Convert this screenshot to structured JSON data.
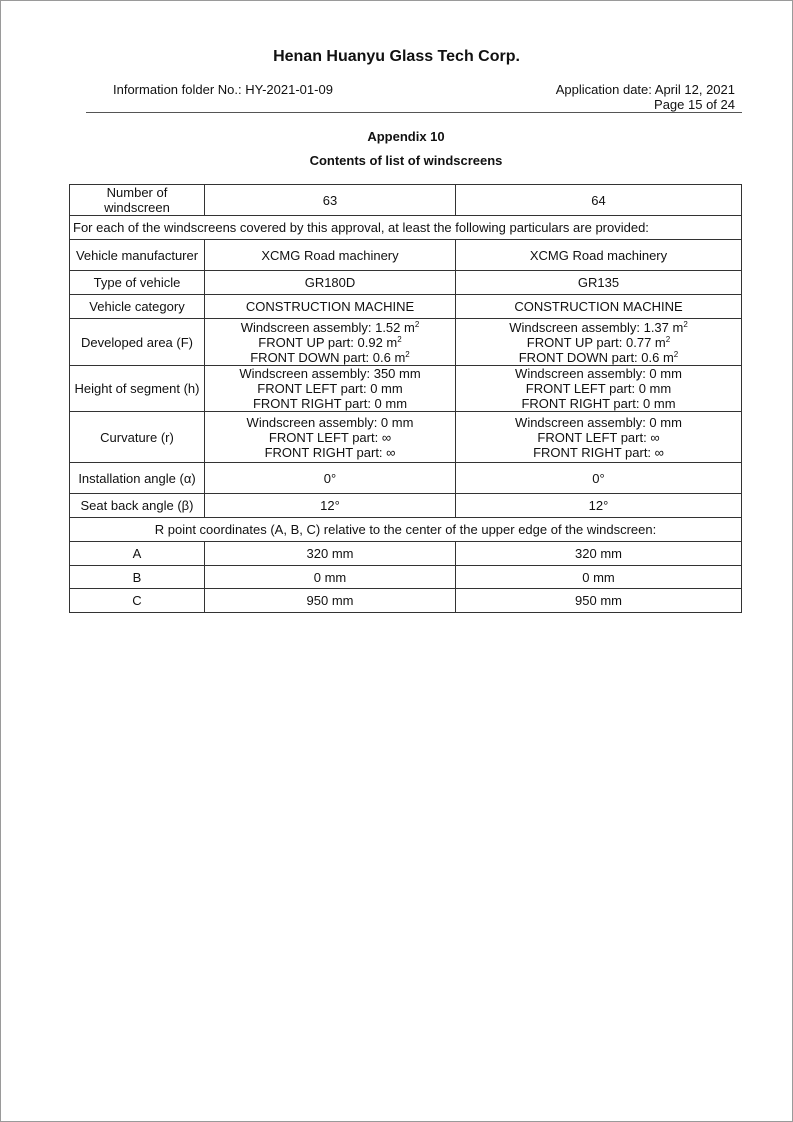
{
  "header": {
    "company": "Henan Huanyu Glass Tech Corp.",
    "folder_no": "Information folder No.: HY-2021-01-09",
    "application_date": "Application date: April 12, 2021",
    "page": "Page 15 of 24"
  },
  "appendix": "Appendix 10",
  "subtitle": "Contents of list of windscreens",
  "table": {
    "rows": [
      {
        "h": 31,
        "label": "Number of windscreen",
        "cols": [
          [
            {
              "t": "63"
            }
          ],
          [
            {
              "t": "64"
            }
          ]
        ]
      },
      {
        "h": 24,
        "span": "For each of the windscreens covered by this approval, at least the following particulars are provided:"
      },
      {
        "h": 31,
        "label": "Vehicle manufacturer",
        "cols": [
          [
            {
              "t": "XCMG Road machinery"
            }
          ],
          [
            {
              "t": "XCMG Road machinery"
            }
          ]
        ]
      },
      {
        "h": 24,
        "label": "Type of vehicle",
        "cols": [
          [
            {
              "t": "GR180D"
            }
          ],
          [
            {
              "t": "GR135"
            }
          ]
        ]
      },
      {
        "h": 24,
        "label": "Vehicle category",
        "cols": [
          [
            {
              "t": "CONSTRUCTION MACHINE"
            }
          ],
          [
            {
              "t": "CONSTRUCTION MACHINE"
            }
          ]
        ]
      },
      {
        "h": 47,
        "label": "Developed area (F)",
        "cols": [
          [
            {
              "t": "Windscreen assembly: 1.52 m",
              "sup": "2"
            },
            {
              "t": "FRONT UP part: 0.92 m",
              "sup": "2"
            },
            {
              "t": "FRONT DOWN part: 0.6 m",
              "sup": "2"
            }
          ],
          [
            {
              "t": "Windscreen assembly: 1.37 m",
              "sup": "2"
            },
            {
              "t": "FRONT UP part: 0.77 m",
              "sup": "2"
            },
            {
              "t": "FRONT DOWN part: 0.6 m",
              "sup": "2"
            }
          ]
        ]
      },
      {
        "h": 46,
        "label": "Height of segment (h)",
        "cols": [
          [
            {
              "t": "Windscreen assembly: 350 mm"
            },
            {
              "t": "FRONT LEFT part: 0 mm"
            },
            {
              "t": "FRONT RIGHT part: 0 mm"
            }
          ],
          [
            {
              "t": "Windscreen assembly: 0 mm"
            },
            {
              "t": "FRONT LEFT part: 0 mm"
            },
            {
              "t": "FRONT RIGHT part: 0 mm"
            }
          ]
        ]
      },
      {
        "h": 51,
        "label": "Curvature (r)",
        "cols": [
          [
            {
              "t": "Windscreen assembly: 0 mm"
            },
            {
              "t": "FRONT LEFT part: ∞"
            },
            {
              "t": "FRONT RIGHT part: ∞"
            }
          ],
          [
            {
              "t": "Windscreen assembly: 0 mm"
            },
            {
              "t": "FRONT LEFT part: ∞"
            },
            {
              "t": "FRONT RIGHT part: ∞"
            }
          ]
        ]
      },
      {
        "h": 31,
        "label": "Installation angle (α)",
        "cols": [
          [
            {
              "t": "0°"
            }
          ],
          [
            {
              "t": "0°"
            }
          ]
        ]
      },
      {
        "h": 24,
        "label": "Seat back angle (β)",
        "cols": [
          [
            {
              "t": "12°"
            }
          ],
          [
            {
              "t": "12°"
            }
          ]
        ]
      },
      {
        "h": 24,
        "span": "R point coordinates (A, B, C) relative to the center of the upper edge of the windscreen:"
      },
      {
        "h": 24,
        "label": "A",
        "cols": [
          [
            {
              "t": "320 mm"
            }
          ],
          [
            {
              "t": "320 mm"
            }
          ]
        ]
      },
      {
        "h": 23,
        "label": "B",
        "cols": [
          [
            {
              "t": "0 mm"
            }
          ],
          [
            {
              "t": "0 mm"
            }
          ]
        ]
      },
      {
        "h": 24,
        "label": "C",
        "cols": [
          [
            {
              "t": "950 mm"
            }
          ],
          [
            {
              "t": "950 mm"
            }
          ]
        ]
      }
    ]
  }
}
